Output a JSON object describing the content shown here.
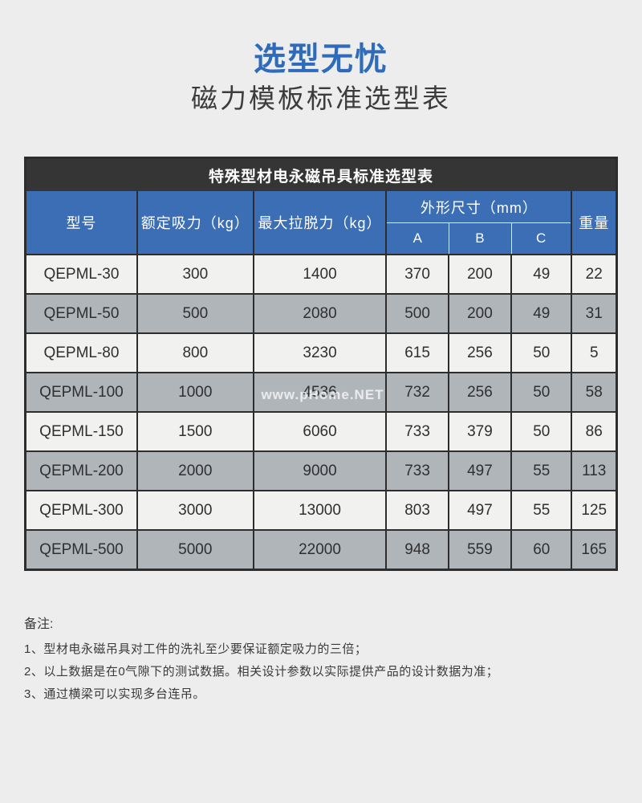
{
  "page": {
    "title_accent": "选型无忧",
    "title_main": "磁力模板标准选型表"
  },
  "colors": {
    "title_blue": "#2e6cbb",
    "header_blue": "#3b6eb5",
    "dark_bar": "#353535",
    "row_gray": "#b0b5ba",
    "row_light": "#f1f1ef"
  },
  "table": {
    "caption": "特殊型材电永磁吊具标准选型表",
    "headers": {
      "model": "型号",
      "rated": "额定吸力（kg）",
      "pull": "最大拉脱力（kg）",
      "dims": "外形尺寸（mm）",
      "dim_a": "A",
      "dim_b": "B",
      "dim_c": "C",
      "weight": "重量"
    },
    "rows": [
      {
        "model": "QEPML-30",
        "rated": "300",
        "pull": "1400",
        "a": "370",
        "b": "200",
        "c": "49",
        "weight": "22"
      },
      {
        "model": "QEPML-50",
        "rated": "500",
        "pull": "2080",
        "a": "500",
        "b": "200",
        "c": "49",
        "weight": "31"
      },
      {
        "model": "QEPML-80",
        "rated": "800",
        "pull": "3230",
        "a": "615",
        "b": "256",
        "c": "50",
        "weight": "5"
      },
      {
        "model": "QEPML-100",
        "rated": "1000",
        "pull": "4536",
        "a": "732",
        "b": "256",
        "c": "50",
        "weight": "58"
      },
      {
        "model": "QEPML-150",
        "rated": "1500",
        "pull": "6060",
        "a": "733",
        "b": "379",
        "c": "50",
        "weight": "86"
      },
      {
        "model": "QEPML-200",
        "rated": "2000",
        "pull": "9000",
        "a": "733",
        "b": "497",
        "c": "55",
        "weight": "113"
      },
      {
        "model": "QEPML-300",
        "rated": "3000",
        "pull": "13000",
        "a": "803",
        "b": "497",
        "c": "55",
        "weight": "125"
      },
      {
        "model": "QEPML-500",
        "rated": "5000",
        "pull": "22000",
        "a": "948",
        "b": "559",
        "c": "60",
        "weight": "165"
      }
    ]
  },
  "watermark": "www.pHome.NET",
  "notes": {
    "label": "备注:",
    "items": [
      "1、型材电永磁吊具对工件的洗礼至少要保证额定吸力的三倍；",
      "2、以上数据是在0气隙下的测试数据。相关设计参数以实际提供产品的设计数据为准；",
      "3、通过横梁可以实现多台连吊。"
    ]
  }
}
